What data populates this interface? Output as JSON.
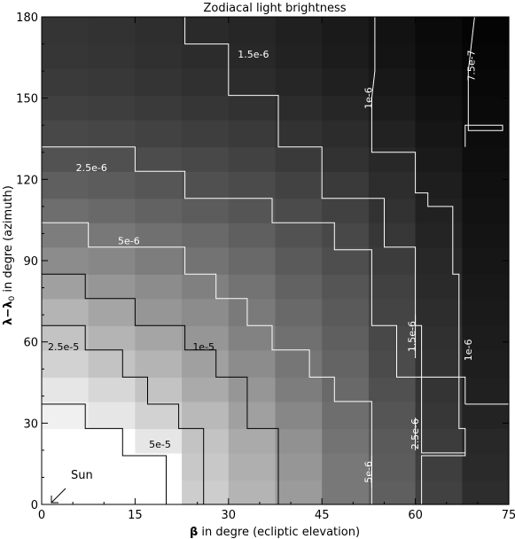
{
  "chart_data": {
    "type": "heatmap",
    "title": "Zodiacal light brightness",
    "xlabel_symbol": "β",
    "xlabel_rest": " in degre (ecliptic elevation)",
    "ylabel_main": "λ−λ",
    "ylabel_sub": "0",
    "ylabel_rest": " in degre (azimuth)",
    "xlim": [
      0,
      75
    ],
    "ylim": [
      0,
      180
    ],
    "xticks": [
      "0",
      "15",
      "30",
      "45",
      "60",
      "75"
    ],
    "yticks": [
      "0",
      "30",
      "60",
      "90",
      "120",
      "150",
      "180"
    ],
    "x_edges": [
      0,
      7.5,
      15,
      22.5,
      30,
      37.5,
      45,
      52.5,
      60,
      67.5,
      75
    ],
    "y_edges": [
      0,
      9,
      19,
      28,
      38,
      47,
      57,
      66,
      76,
      85,
      95,
      104,
      113,
      123,
      132,
      142,
      151,
      161,
      170,
      180
    ],
    "brightness_rows": [
      [
        255,
        255,
        255,
        205,
        180,
        155,
        120,
        95,
        65,
        45
      ],
      [
        255,
        255,
        255,
        200,
        175,
        150,
        120,
        92,
        62,
        42
      ],
      [
        255,
        255,
        230,
        195,
        170,
        145,
        115,
        90,
        60,
        40
      ],
      [
        240,
        230,
        210,
        185,
        160,
        135,
        110,
        85,
        55,
        35
      ],
      [
        230,
        215,
        195,
        170,
        150,
        125,
        105,
        80,
        52,
        32
      ],
      [
        210,
        195,
        180,
        160,
        140,
        118,
        100,
        75,
        50,
        30
      ],
      [
        195,
        180,
        165,
        150,
        130,
        112,
        95,
        72,
        48,
        28
      ],
      [
        180,
        165,
        150,
        140,
        122,
        105,
        90,
        68,
        45,
        26
      ],
      [
        160,
        150,
        140,
        128,
        115,
        98,
        85,
        65,
        42,
        24
      ],
      [
        140,
        135,
        125,
        115,
        105,
        90,
        78,
        60,
        40,
        22
      ],
      [
        125,
        120,
        112,
        105,
        95,
        82,
        72,
        55,
        36,
        20
      ],
      [
        110,
        105,
        98,
        92,
        85,
        75,
        65,
        50,
        33,
        18
      ],
      [
        95,
        92,
        86,
        80,
        75,
        66,
        58,
        45,
        30,
        16
      ],
      [
        82,
        80,
        76,
        72,
        66,
        58,
        50,
        40,
        26,
        14
      ],
      [
        72,
        70,
        66,
        62,
        58,
        50,
        44,
        34,
        22,
        12
      ],
      [
        64,
        62,
        58,
        54,
        50,
        44,
        38,
        28,
        18,
        10
      ],
      [
        58,
        56,
        52,
        48,
        44,
        38,
        32,
        24,
        14,
        8
      ],
      [
        54,
        52,
        48,
        44,
        40,
        34,
        28,
        20,
        12,
        6
      ],
      [
        52,
        50,
        46,
        42,
        38,
        32,
        26,
        18,
        10,
        4
      ]
    ],
    "contours": [
      {
        "label": "5e-5",
        "color": "#000000",
        "label_at": [
          19,
          21
        ],
        "points": [
          [
            20,
            0
          ],
          [
            20,
            18
          ],
          [
            13,
            18
          ],
          [
            13,
            28
          ],
          [
            7,
            28
          ],
          [
            7,
            37
          ],
          [
            0,
            37
          ]
        ]
      },
      {
        "label": "2.5e-5",
        "color": "#000000",
        "label_at": [
          3.5,
          57
        ],
        "points": [
          [
            26,
            0
          ],
          [
            26,
            28
          ],
          [
            22,
            28
          ],
          [
            22,
            37
          ],
          [
            17,
            37
          ],
          [
            17,
            47
          ],
          [
            13,
            47
          ],
          [
            13,
            57
          ],
          [
            7,
            57
          ],
          [
            7,
            66
          ],
          [
            0,
            66
          ]
        ]
      },
      {
        "label": "1e-5",
        "color": "#000000",
        "label_at": [
          26,
          57
        ],
        "points": [
          [
            38,
            0
          ],
          [
            38,
            28
          ],
          [
            33,
            28
          ],
          [
            33,
            47
          ],
          [
            28,
            47
          ],
          [
            28,
            57
          ],
          [
            23,
            57
          ],
          [
            23,
            66
          ],
          [
            15,
            66
          ],
          [
            15,
            76
          ],
          [
            7,
            76
          ],
          [
            7,
            85
          ],
          [
            0,
            85
          ]
        ]
      },
      {
        "label": "5e-6",
        "color": "#ffffff",
        "label_at": [
          14,
          96
        ],
        "points": [
          [
            53,
            0
          ],
          [
            53,
            38
          ],
          [
            47,
            38
          ],
          [
            47,
            47
          ],
          [
            43,
            47
          ],
          [
            43,
            57
          ],
          [
            37,
            57
          ],
          [
            37,
            66
          ],
          [
            33,
            66
          ],
          [
            33,
            76
          ],
          [
            28,
            76
          ],
          [
            28,
            85
          ],
          [
            23,
            85
          ],
          [
            23,
            95
          ],
          [
            7.5,
            95
          ],
          [
            7.5,
            104
          ],
          [
            0,
            104
          ]
        ]
      },
      {
        "label": "2.5e-6",
        "color": "#ffffff",
        "label_at": [
          8,
          123
        ],
        "points": [
          [
            61,
            0
          ],
          [
            61,
            18
          ],
          [
            68,
            18
          ],
          [
            68,
            19
          ],
          [
            61,
            19
          ],
          [
            61,
            47
          ],
          [
            57,
            47
          ],
          [
            57,
            66
          ],
          [
            53,
            66
          ],
          [
            53,
            94
          ],
          [
            47,
            94
          ],
          [
            47,
            104
          ],
          [
            37,
            104
          ],
          [
            37,
            113
          ],
          [
            23,
            113
          ],
          [
            23,
            123
          ],
          [
            15,
            123
          ],
          [
            15,
            132
          ],
          [
            0,
            132
          ]
        ]
      },
      {
        "label": "1.5e-6",
        "color": "#ffffff",
        "label_at": [
          34,
          165
        ],
        "points": [
          [
            68,
            19
          ],
          [
            68,
            28
          ],
          [
            67,
            28
          ],
          [
            67,
            47
          ],
          [
            61,
            47
          ],
          [
            61,
            66
          ],
          [
            60,
            66
          ],
          [
            60,
            95
          ],
          [
            55,
            95
          ],
          [
            55,
            113
          ],
          [
            45,
            113
          ],
          [
            45,
            132
          ],
          [
            38,
            132
          ],
          [
            38,
            151
          ],
          [
            30,
            151
          ],
          [
            30,
            170
          ],
          [
            23,
            170
          ],
          [
            23,
            180
          ]
        ]
      },
      {
        "label": "1e-6",
        "color": "#ffffff",
        "label_at": [
          53,
          150
        ],
        "points": [
          [
            68,
            37
          ],
          [
            68,
            47
          ],
          [
            67,
            47
          ],
          [
            67,
            85
          ],
          [
            66,
            85
          ],
          [
            66,
            110
          ],
          [
            62,
            110
          ],
          [
            62,
            115
          ],
          [
            60,
            115
          ],
          [
            60,
            130
          ],
          [
            53,
            130
          ],
          [
            53,
            150
          ],
          [
            53.5,
            160
          ],
          [
            53.5,
            180
          ]
        ]
      },
      {
        "label": "1e-6",
        "color": "#ffffff",
        "label_at": [
          69,
          57
        ],
        "points": [
          [
            68,
            37
          ],
          [
            75,
            37
          ]
        ]
      },
      {
        "label": "7.5e-7",
        "color": "#ffffff",
        "label_at": [
          69.5,
          162
        ],
        "points": [
          [
            68,
            132
          ],
          [
            68,
            140
          ],
          [
            74,
            140
          ],
          [
            74,
            138
          ],
          [
            68.5,
            138
          ],
          [
            68.5,
            160
          ],
          [
            69.5,
            180
          ]
        ]
      },
      {
        "label": "1.5e-6",
        "color": "#ffffff",
        "label_at": [
          60,
          62
        ],
        "points": [
          [
            60,
            54
          ],
          [
            60,
            70
          ]
        ]
      },
      {
        "label": "2.5e-6",
        "color": "#ffffff",
        "label_at": [
          60.5,
          26
        ],
        "points": [
          [
            60,
            20
          ],
          [
            60,
            32
          ]
        ]
      },
      {
        "label": "5e-6",
        "color": "#ffffff",
        "label_at": [
          53,
          12
        ],
        "points": [
          [
            53,
            6
          ],
          [
            53,
            18
          ]
        ]
      }
    ],
    "annotations": [
      {
        "text": "Sun"
      }
    ]
  }
}
